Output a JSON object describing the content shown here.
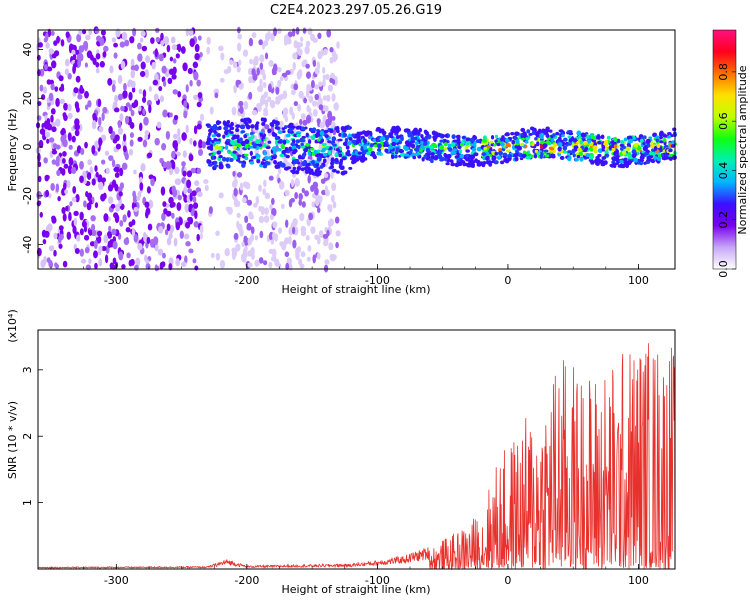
{
  "title": "C2E4.2023.297.05.26.G19",
  "chart_data": [
    {
      "type": "heatmap",
      "xlabel": "Height of straight line (km)",
      "ylabel": "Frequency (Hz)",
      "xlim": [
        -360,
        128
      ],
      "ylim": [
        -50,
        48
      ],
      "x_ticks": [
        -300,
        -200,
        -100,
        0,
        100
      ],
      "x_tick_labels": [
        "-300",
        "-200",
        "-100",
        "0",
        "100"
      ],
      "y_ticks": [
        -40,
        -20,
        0,
        20,
        40
      ],
      "y_tick_labels": [
        "-40",
        "-20",
        "0",
        "20",
        "40"
      ],
      "colorbar": {
        "label": "Normalized spectral amplitude",
        "range": [
          0,
          0.97
        ],
        "ticks": [
          "0.0",
          "0.2",
          "0.4",
          "0.6",
          "0.8"
        ],
        "colormap": [
          "#ffffff",
          "#c7a6f6",
          "#7a00f0",
          "#3a10ff",
          "#00b7ff",
          "#00f0b0",
          "#10ff10",
          "#bfff00",
          "#ffe000",
          "#ff7000",
          "#ff0020",
          "#ff1080"
        ]
      },
      "features": {
        "noise_region_x": [
          -360,
          -130
        ],
        "signal_band_x": [
          -230,
          128
        ],
        "signal_band_center_hz": 0,
        "signal_band_halfwidth_hz": 6
      }
    },
    {
      "type": "line",
      "xlabel": "Height of straight line (km)",
      "ylabel": "SNR (10 * v/v)",
      "y_multiplier": "(x10⁴)",
      "xlim": [
        -360,
        128
      ],
      "ylim": [
        0,
        3.6
      ],
      "x_ticks": [
        -300,
        -200,
        -100,
        0,
        100
      ],
      "x_tick_labels": [
        "-300",
        "-200",
        "-100",
        "0",
        "100"
      ],
      "y_ticks": [
        1,
        2,
        3
      ],
      "y_tick_labels": [
        "1",
        "2",
        "3"
      ],
      "color": "#e8302c",
      "envelope": {
        "x": [
          -360,
          -230,
          -215,
          -200,
          -120,
          -100,
          -80,
          -60,
          -40,
          -20,
          -10,
          0,
          20,
          40,
          60,
          80,
          100,
          128
        ],
        "y": [
          0.03,
          0.04,
          0.15,
          0.05,
          0.08,
          0.13,
          0.2,
          0.35,
          0.55,
          0.9,
          1.6,
          1.9,
          2.5,
          3.3,
          3.0,
          3.2,
          3.6,
          3.5
        ]
      }
    }
  ]
}
